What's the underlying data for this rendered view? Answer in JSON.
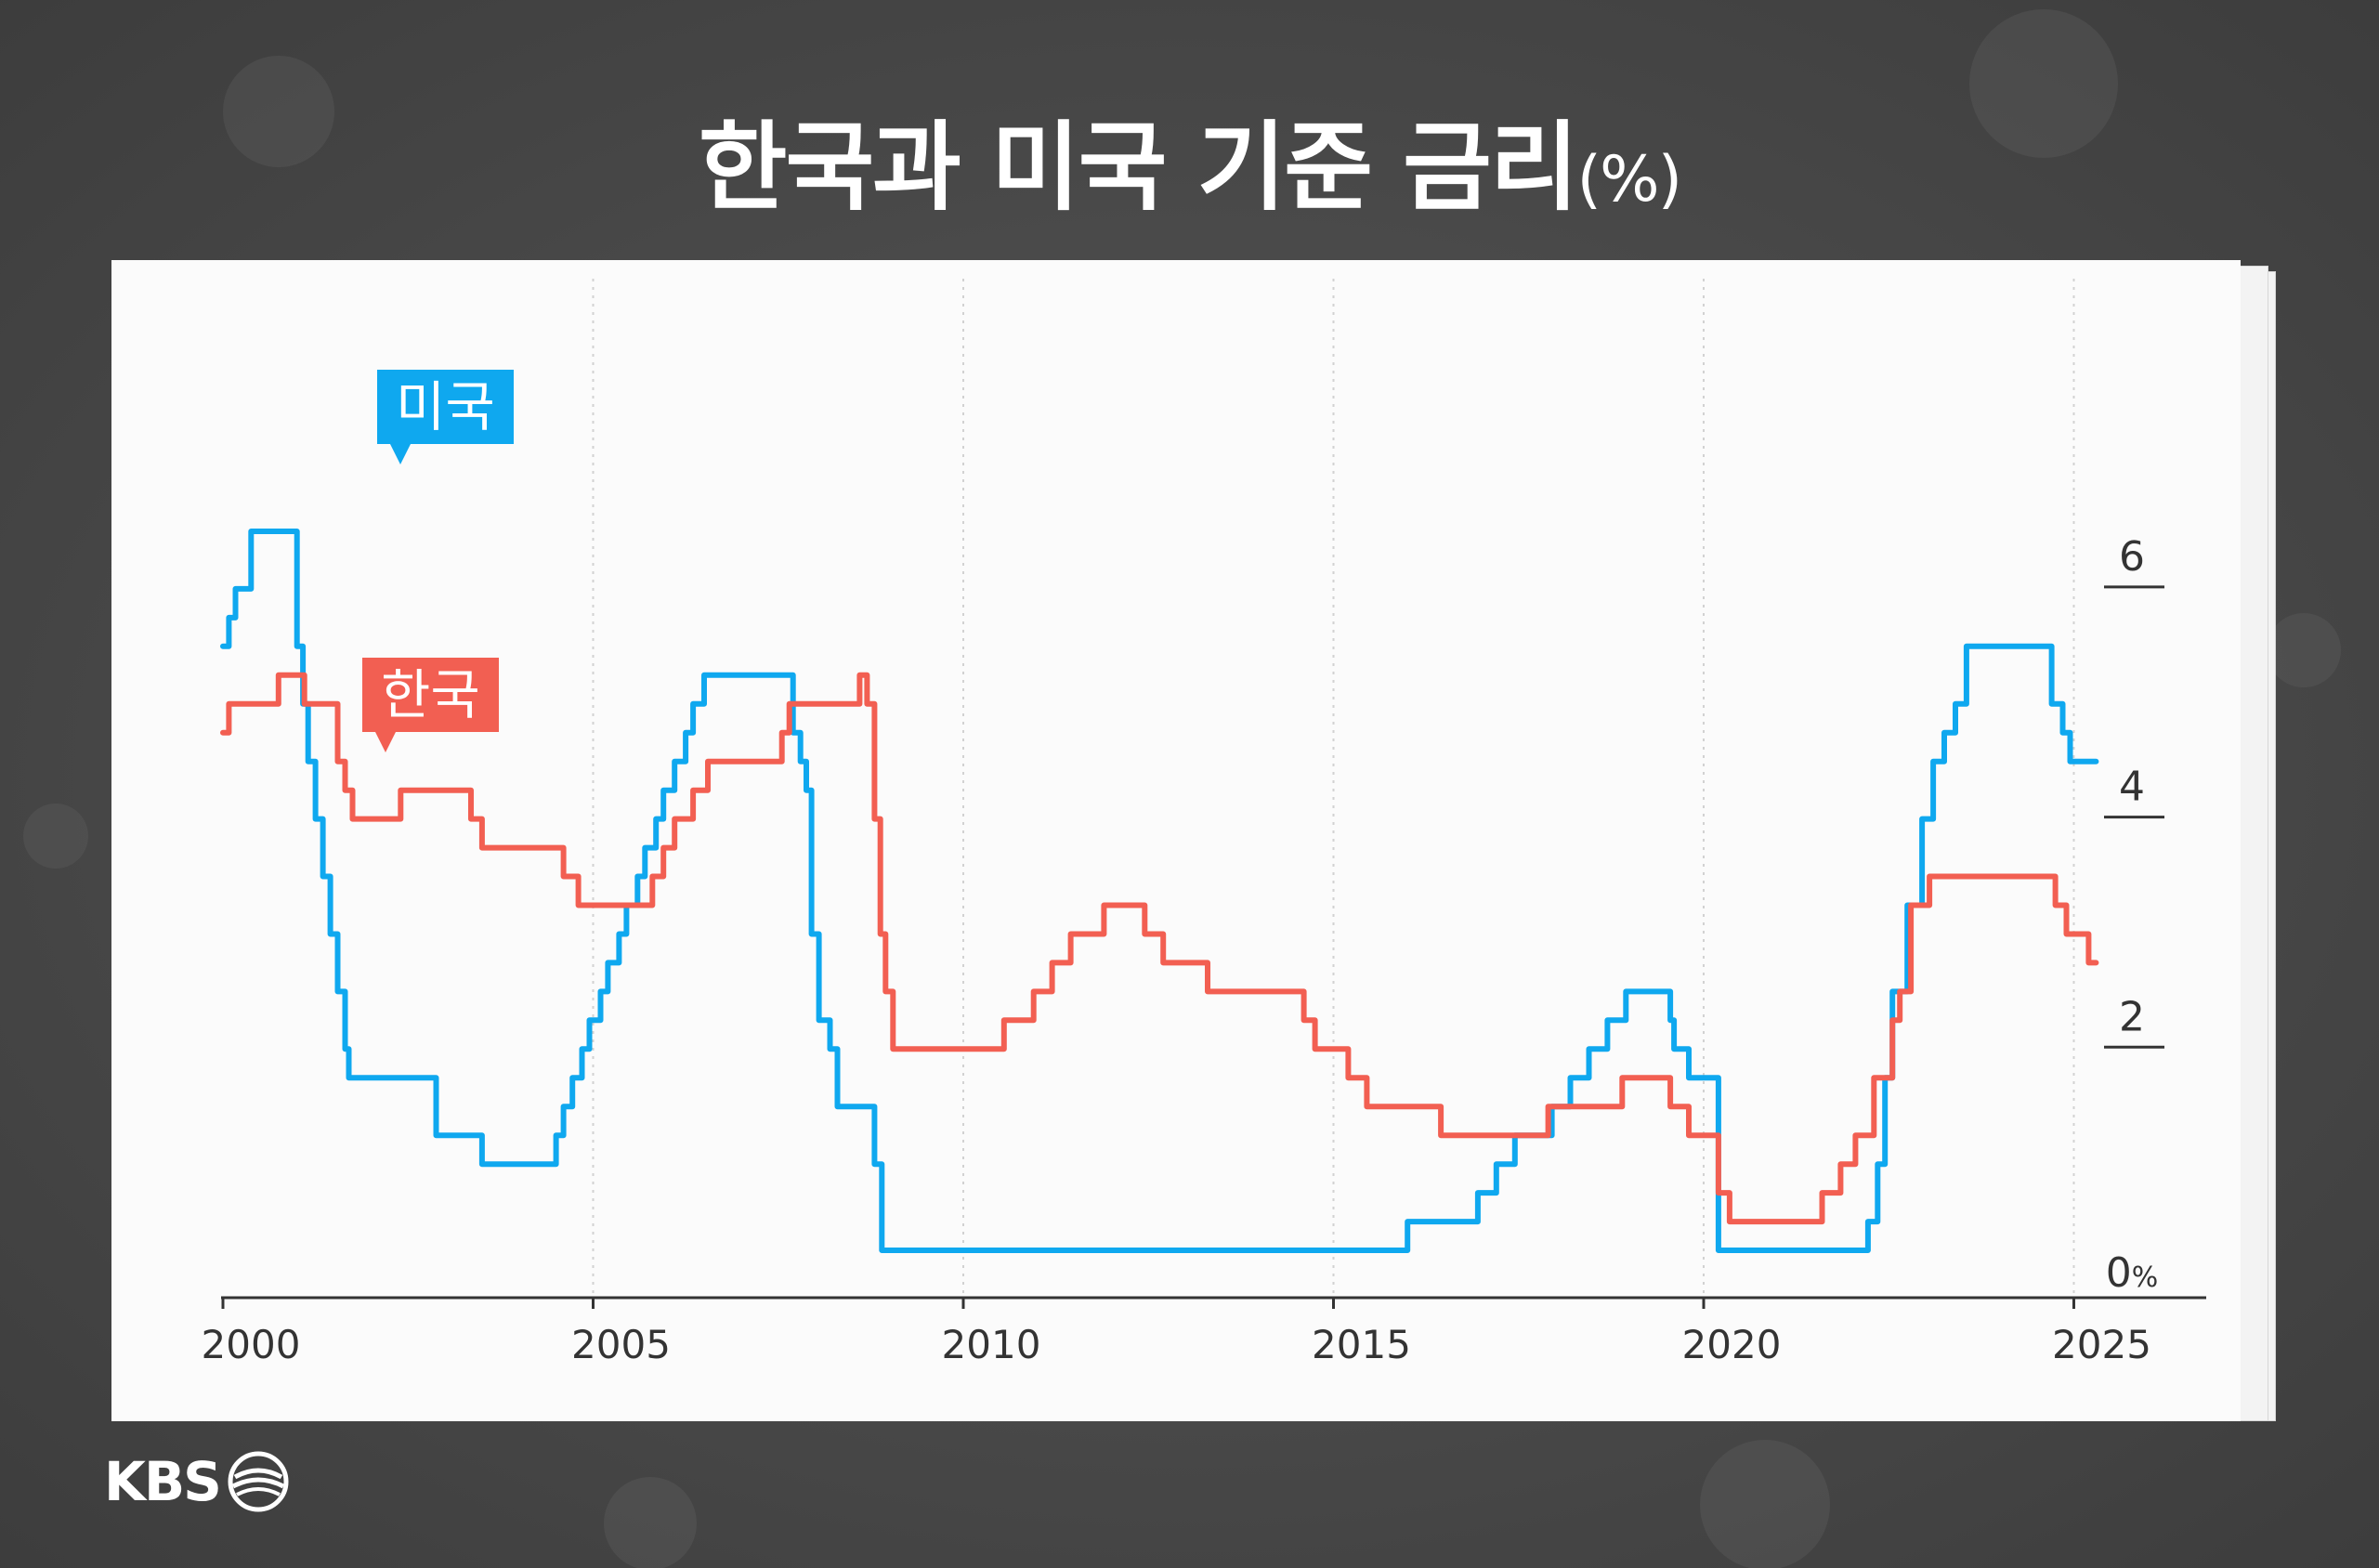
{
  "title": {
    "main": "한국과 미국 기준 금리",
    "unit": "(%)"
  },
  "brand": {
    "name": "KBS"
  },
  "colors": {
    "us": "#0fa8ef",
    "kr": "#f25f52",
    "background": "#4a4a4a",
    "panel": "#fbfbfb"
  },
  "labels": {
    "us": "미국",
    "kr": "한국"
  },
  "chart_data": {
    "type": "line",
    "title": "한국과 미국 기준 금리(%)",
    "xlabel": "",
    "ylabel": "",
    "xlim": [
      2000,
      2026.6
    ],
    "ylim": [
      0,
      6.5
    ],
    "x_ticks": [
      2000,
      2005,
      2010,
      2015,
      2020,
      2025
    ],
    "x_tick_labels": [
      "2000",
      "2005",
      "2010",
      "2015",
      "2020",
      "2025"
    ],
    "y_ticks": [
      0,
      2,
      4,
      6
    ],
    "y_tick_labels": [
      "0%",
      "2",
      "4",
      "6"
    ],
    "grid": "vertical dotted at x ticks",
    "series": [
      {
        "name": "미국",
        "color": "#0fa8ef",
        "step": true,
        "x": [
          2000.0,
          2000.08,
          2000.17,
          2000.38,
          2000.93,
          2001.0,
          2001.08,
          2001.15,
          2001.25,
          2001.35,
          2001.45,
          2001.55,
          2001.65,
          2001.7,
          2001.8,
          2001.9,
          2001.95,
          2002.88,
          2003.5,
          2004.5,
          2004.6,
          2004.72,
          2004.85,
          2004.95,
          2005.1,
          2005.2,
          2005.35,
          2005.45,
          2005.6,
          2005.7,
          2005.85,
          2005.95,
          2006.1,
          2006.25,
          2006.35,
          2006.5,
          2007.7,
          2007.8,
          2007.88,
          2007.95,
          2008.05,
          2008.2,
          2008.3,
          2008.8,
          2008.9,
          2016.0,
          2016.95,
          2017.2,
          2017.45,
          2017.95,
          2018.2,
          2018.45,
          2018.7,
          2018.95,
          2019.55,
          2019.6,
          2019.8,
          2020.2,
          2022.22,
          2022.35,
          2022.45,
          2022.55,
          2022.75,
          2022.95,
          2023.1,
          2023.25,
          2023.4,
          2023.55,
          2024.7,
          2024.85,
          2024.95,
          2025.3
        ],
        "values": [
          5.5,
          5.75,
          6.0,
          6.5,
          6.5,
          5.5,
          5.0,
          4.5,
          4.0,
          3.5,
          3.0,
          2.5,
          2.0,
          1.75,
          1.75,
          1.75,
          1.75,
          1.25,
          1.0,
          1.25,
          1.5,
          1.75,
          2.0,
          2.25,
          2.5,
          2.75,
          3.0,
          3.25,
          3.5,
          3.75,
          4.0,
          4.25,
          4.5,
          4.75,
          5.0,
          5.25,
          4.75,
          4.5,
          4.25,
          3.0,
          2.25,
          2.0,
          1.5,
          1.0,
          0.25,
          0.5,
          0.75,
          1.0,
          1.25,
          1.5,
          1.75,
          2.0,
          2.25,
          2.5,
          2.25,
          2.0,
          1.75,
          0.25,
          0.5,
          1.0,
          1.75,
          2.5,
          3.25,
          4.0,
          4.5,
          4.75,
          5.0,
          5.5,
          5.0,
          4.75,
          4.5,
          4.5
        ]
      },
      {
        "name": "한국",
        "color": "#f25f52",
        "step": true,
        "x": [
          2000.0,
          2000.08,
          2000.75,
          2001.1,
          2001.55,
          2001.65,
          2001.75,
          2002.4,
          2003.35,
          2003.5,
          2004.6,
          2004.7,
          2004.8,
          2005.8,
          2005.95,
          2006.1,
          2006.35,
          2006.55,
          2006.7,
          2007.55,
          2007.65,
          2008.6,
          2008.7,
          2008.8,
          2008.88,
          2008.95,
          2009.05,
          2009.12,
          2010.55,
          2010.95,
          2011.2,
          2011.45,
          2011.9,
          2012.45,
          2012.7,
          2013.3,
          2014.6,
          2014.75,
          2015.2,
          2015.45,
          2016.45,
          2017.9,
          2018.9,
          2019.55,
          2019.8,
          2020.2,
          2020.35,
          2021.6,
          2021.85,
          2022.05,
          2022.3,
          2022.55,
          2022.65,
          2022.8,
          2023.05,
          2024.75,
          2024.9,
          2025.2,
          2025.3
        ],
        "values": [
          4.75,
          5.0,
          5.25,
          5.0,
          4.5,
          4.25,
          4.0,
          4.25,
          4.0,
          3.75,
          3.5,
          3.5,
          3.25,
          3.5,
          3.75,
          4.0,
          4.25,
          4.5,
          4.5,
          4.75,
          5.0,
          5.25,
          5.0,
          4.0,
          3.0,
          2.5,
          2.0,
          2.0,
          2.25,
          2.5,
          2.75,
          3.0,
          3.25,
          3.0,
          2.75,
          2.5,
          2.25,
          2.0,
          1.75,
          1.5,
          1.25,
          1.5,
          1.75,
          1.5,
          1.25,
          0.75,
          0.5,
          0.75,
          1.0,
          1.25,
          1.75,
          2.25,
          2.5,
          3.25,
          3.5,
          3.25,
          3.0,
          2.75,
          2.75
        ]
      }
    ]
  }
}
